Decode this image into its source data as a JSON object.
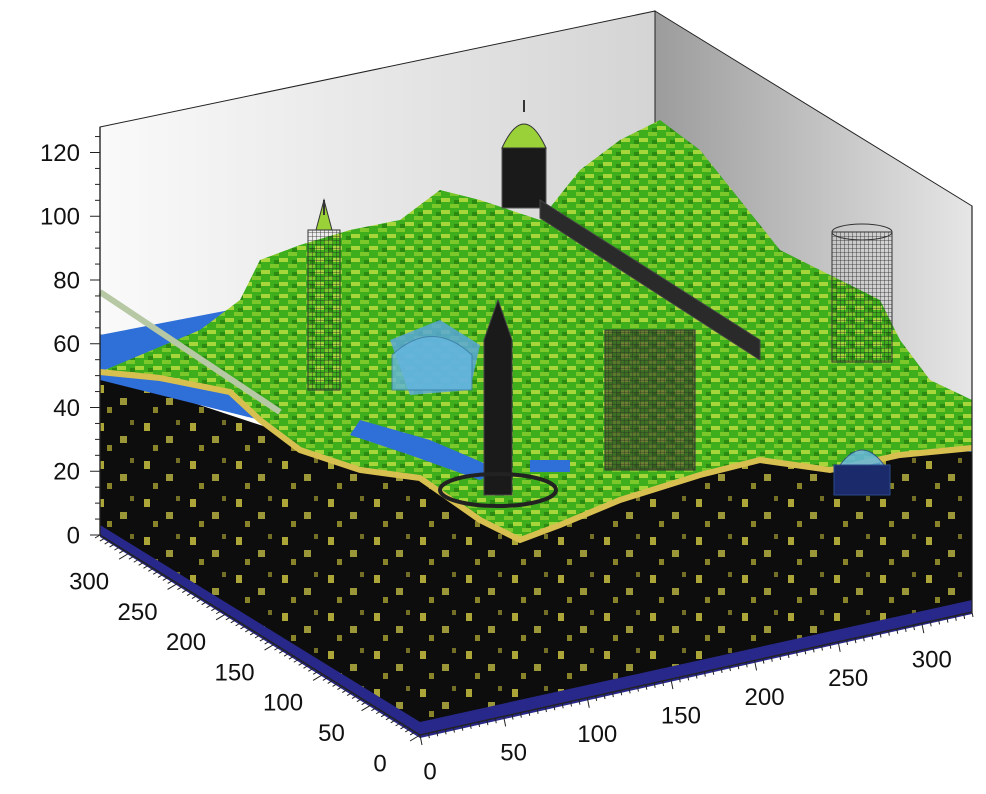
{
  "chart_data": {
    "type": "voxel-3d",
    "title": "",
    "axes": {
      "z": {
        "label": "",
        "ticks": [
          0,
          20,
          40,
          60,
          80,
          100,
          120
        ],
        "range": [
          0,
          128
        ]
      },
      "x": {
        "label": "",
        "ticks": [
          0,
          50,
          100,
          150,
          200,
          250,
          300
        ],
        "range": [
          0,
          330
        ]
      },
      "y": {
        "label": "",
        "ticks": [
          0,
          50,
          100,
          150,
          200,
          250,
          300
        ],
        "range": [
          0,
          330
        ]
      }
    },
    "grid": false,
    "legend": "none",
    "colors": {
      "wall_light": "#f4f4f4",
      "wall_dark": "#b8b8b8",
      "underground": "#0d0d0d",
      "ore": "#d8d04a",
      "grass": "#4cc01c",
      "grass_light": "#9ad038",
      "water": "#2f6fd8",
      "bedrock": "#2a2a8a",
      "structure_dark": "#1a1a1a"
    }
  }
}
